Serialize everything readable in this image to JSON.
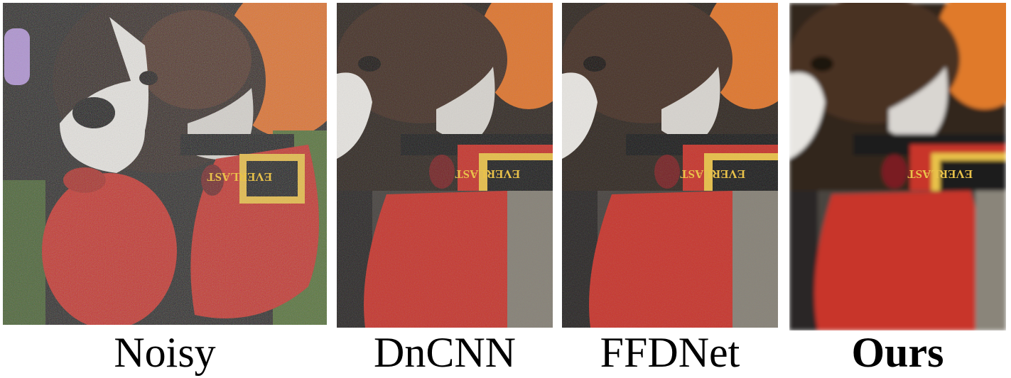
{
  "captions": {
    "noisy": "Noisy",
    "dncnn": "DnCNN",
    "ffdnet": "FFDNet",
    "ours": "Ours"
  },
  "panels": {
    "noisy": {
      "scene": "boxer dog with red boxing gloves, noisy"
    },
    "dncnn": {
      "scene": "zoomed crops of dog face and red glove, denoised"
    },
    "ffdnet": {
      "scene": "zoomed crops of dog face and red glove, denoised"
    },
    "ours": {
      "scene": "zoomed crops of dog face and red glove, smooth"
    }
  },
  "glove_brand": "EVERLAST",
  "colors": {
    "glove_red": "#c8362b",
    "label_yellow": "#e9c24a",
    "orange_bg": "#e07a2a",
    "fur_dark": "#3a2b24",
    "fur_white": "#e8e6e2",
    "grass": "#5c7a3a"
  }
}
